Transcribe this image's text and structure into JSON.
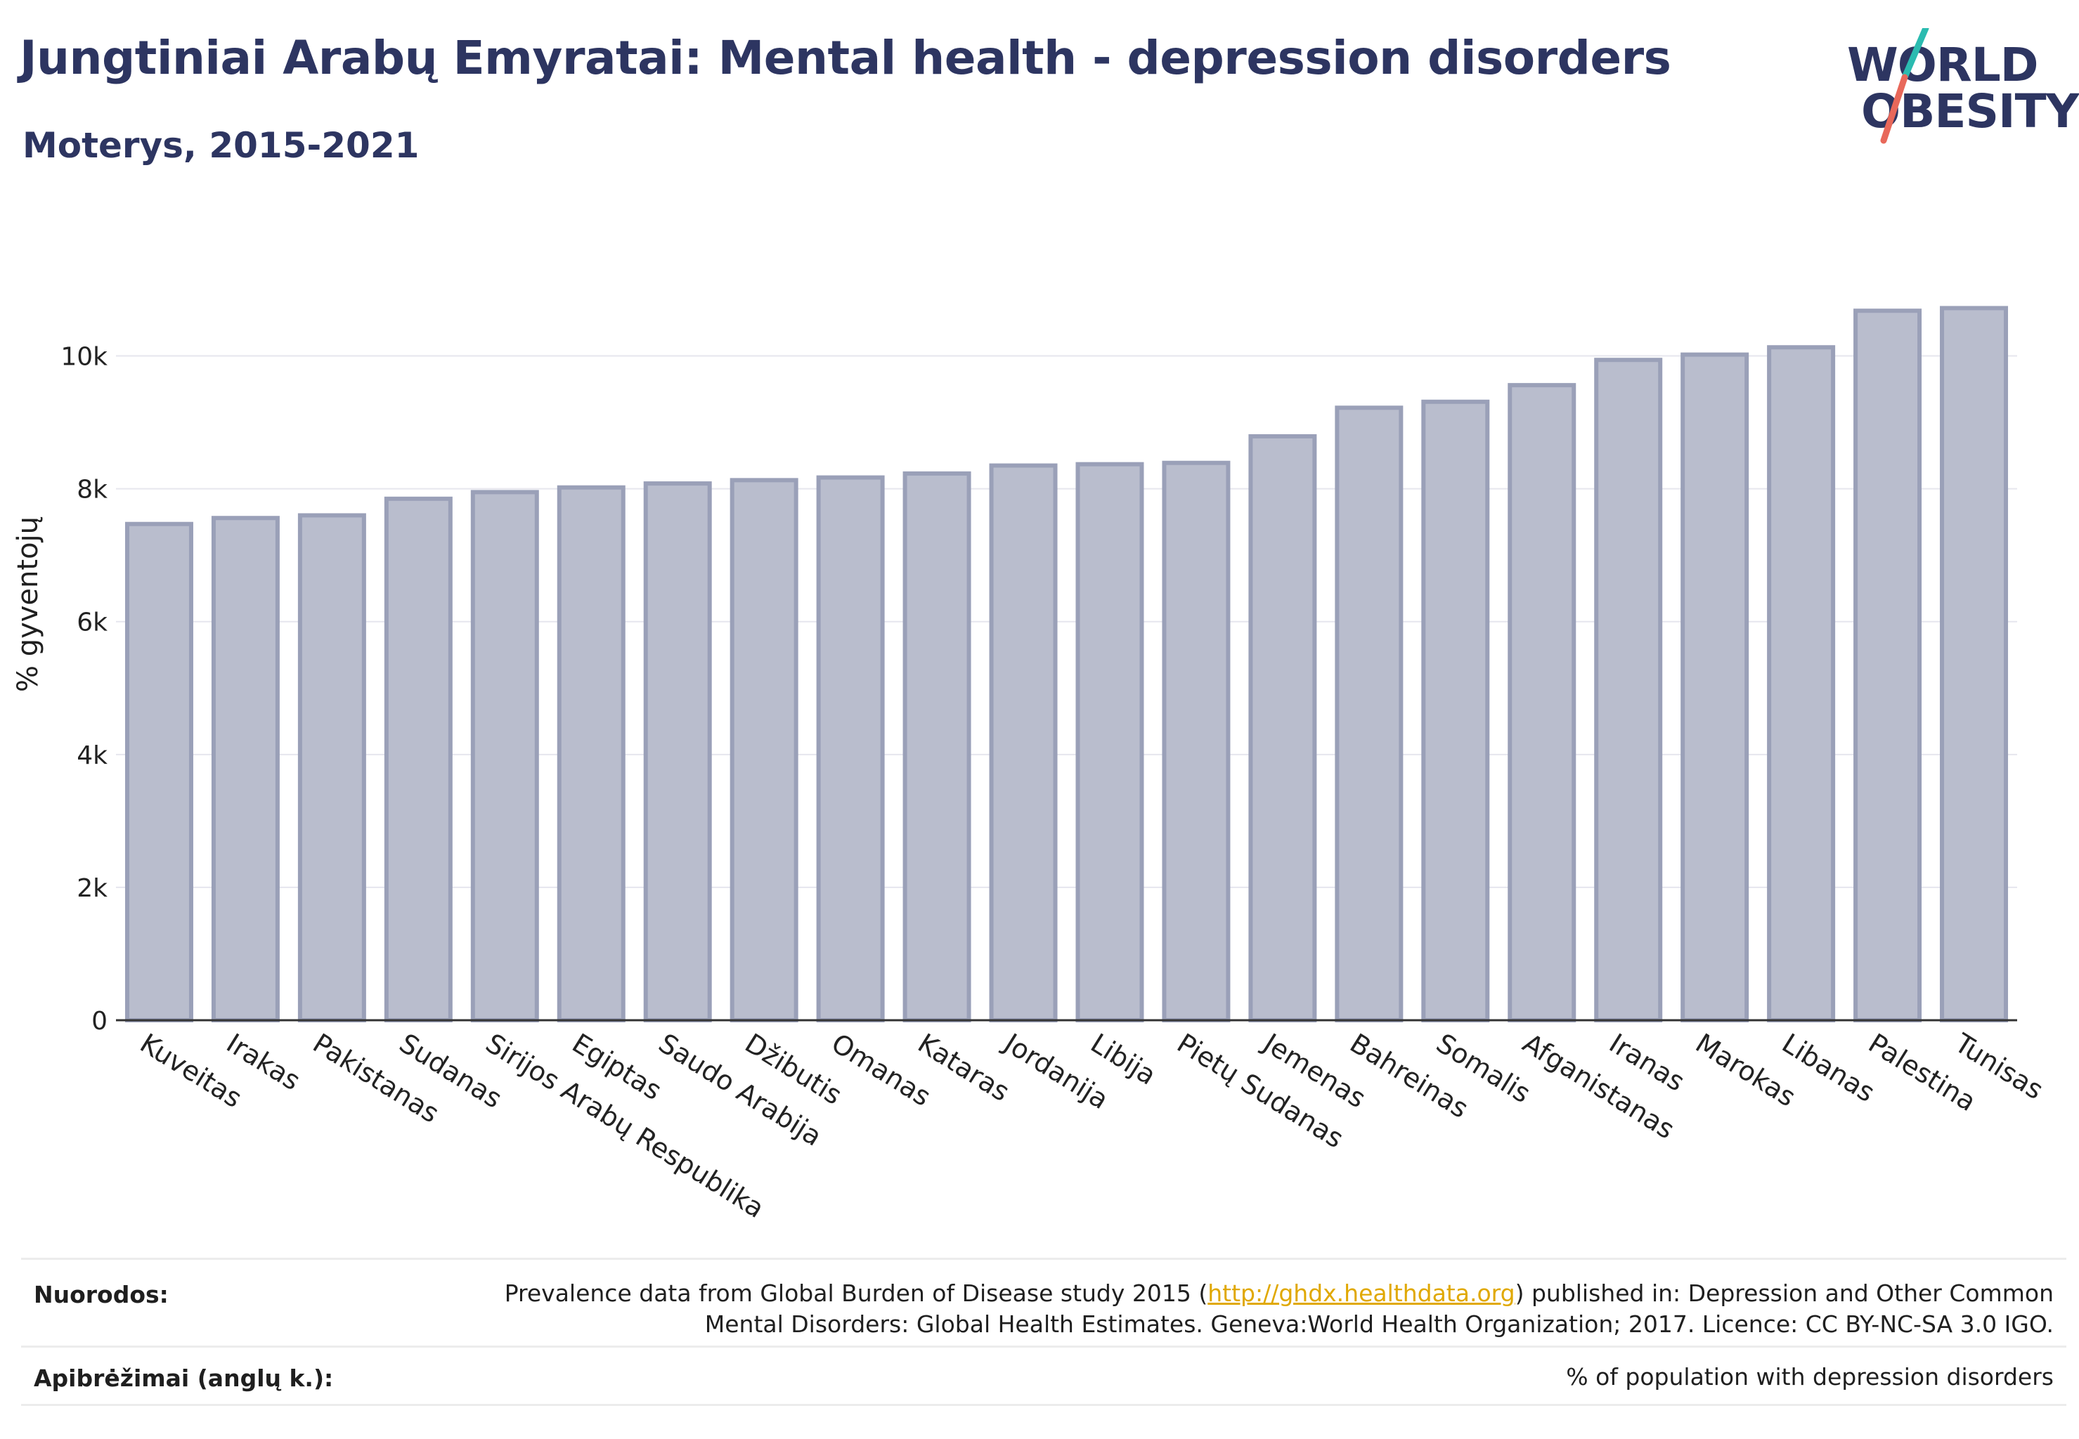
{
  "header": {
    "title": "Jungtiniai Arabų Emyratai: Mental health - depression disorders",
    "subtitle": "Moterys, 2015-2021"
  },
  "logo": {
    "line1": "WORLD",
    "line2": "OBESITY",
    "colors": {
      "navy": "#2d3561",
      "teal": "#2bbbb0",
      "coral": "#e8685a"
    }
  },
  "chart_data": {
    "type": "bar",
    "ylabel": "% gyventojų",
    "xlabel": "",
    "ylim": [
      0,
      11000
    ],
    "yticks": [
      0,
      2000,
      4000,
      6000,
      8000,
      10000
    ],
    "ytick_labels": [
      "0",
      "2k",
      "4k",
      "6k",
      "8k",
      "10k"
    ],
    "grid": true,
    "bar_fill": "#b9bdcd",
    "bar_stroke": "#9aa0b8",
    "categories": [
      "Kuveitas",
      "Irakas",
      "Pakistanas",
      "Sudanas",
      "Sirijos Arabų Respublika",
      "Egiptas",
      "Saudo Arabija",
      "Džibutis",
      "Omanas",
      "Kataras",
      "Jordanija",
      "Libija",
      "Pietų Sudanas",
      "Jemenas",
      "Bahreinas",
      "Somalis",
      "Afganistanas",
      "Iranas",
      "Marokas",
      "Libanas",
      "Palestina",
      "Tunisas"
    ],
    "values": [
      7470,
      7560,
      7600,
      7850,
      7950,
      8020,
      8080,
      8130,
      8170,
      8230,
      8350,
      8370,
      8390,
      8790,
      9220,
      9310,
      9560,
      9940,
      10020,
      10130,
      10680,
      10720
    ]
  },
  "footer": {
    "sources_label": "Nuorodos:",
    "sources_pre": "Prevalence data from Global Burden of Disease study 2015 (",
    "sources_link": "http://ghdx.healthdata.org",
    "sources_post": ") published in: Depression and Other Common Mental Disorders: Global Health Estimates. Geneva:World Health Organization; 2017. Licence: CC BY-NC-SA 3.0 IGO.",
    "definitions_label": "Apibrėžimai (anglų k.):",
    "definitions_text": "% of population with depression disorders"
  }
}
